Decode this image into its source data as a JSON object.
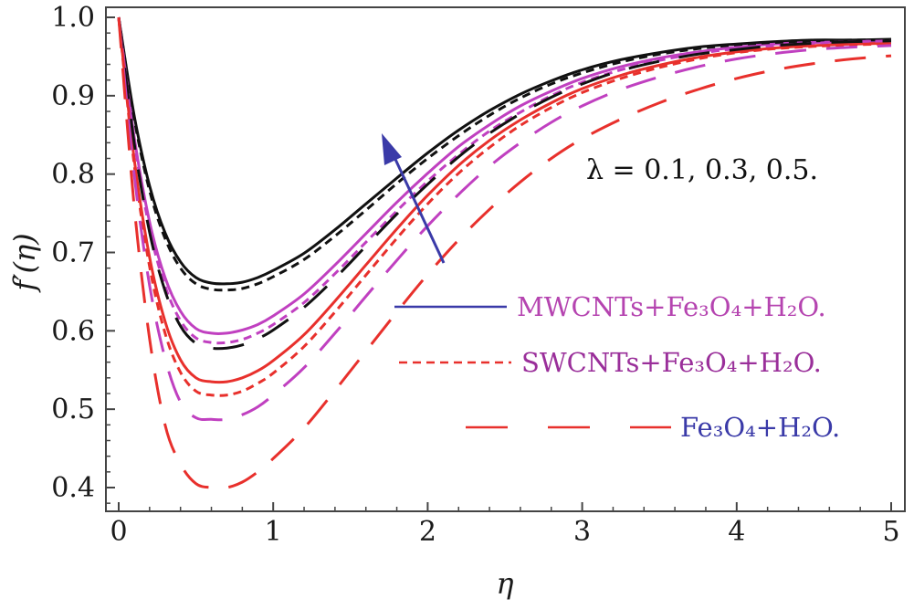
{
  "chart_data": {
    "type": "line",
    "title": "",
    "xlabel": "η",
    "ylabel": "f′(η)",
    "xlim": [
      0,
      5
    ],
    "ylim": [
      0.37,
      1.02
    ],
    "x_ticks": [
      0,
      1,
      2,
      3,
      4,
      5
    ],
    "x_tick_labels": [
      "0",
      "1",
      "2",
      "3",
      "4",
      "5"
    ],
    "y_ticks": [
      0.4,
      0.5,
      0.6,
      0.7,
      0.8,
      0.9,
      1.0
    ],
    "y_tick_labels": [
      "0.4",
      "0.5",
      "0.6",
      "0.7",
      "0.8",
      "0.9",
      "1.0"
    ],
    "grid": false,
    "annotation": "λ = 0.1, 0.3, 0.5.",
    "arrow_color": "#3a3aa8",
    "legend": [
      {
        "label": "MWCNTs+Fe₃O₄+H₂O.",
        "style": "solid",
        "line_color": "#3a3aa8",
        "text_color": "#b544b0"
      },
      {
        "label": "SWCNTs+Fe₃O₄+H₂O.",
        "style": "short-dash",
        "line_color": "#e8302c",
        "text_color": "#9a2f9a"
      },
      {
        "label": "Fe₃O₄+H₂O.",
        "style": "long-dash",
        "line_color": "#e8302c",
        "text_color": "#3a3aa8"
      }
    ],
    "series": [
      {
        "fluid": "MWCNTs+Fe₃O₄+H₂O",
        "lambda": 0.5,
        "style": "solid",
        "color": "#111111",
        "min_y": 0.66,
        "min_x": 0.7,
        "x": [
          0,
          0.1,
          0.2,
          0.3,
          0.4,
          0.5,
          0.6,
          0.7,
          0.8,
          0.9,
          1.0,
          1.2,
          1.4,
          1.6,
          1.8,
          2.0,
          2.2,
          2.4,
          2.6,
          2.8,
          3.0,
          3.25,
          3.5,
          3.75,
          4.0,
          4.25,
          4.5,
          4.75,
          5.0
        ],
        "y": [
          1.0,
          0.875,
          0.785,
          0.725,
          0.688,
          0.668,
          0.661,
          0.66,
          0.662,
          0.668,
          0.677,
          0.699,
          0.729,
          0.762,
          0.795,
          0.827,
          0.856,
          0.881,
          0.902,
          0.919,
          0.933,
          0.946,
          0.955,
          0.962,
          0.966,
          0.969,
          0.971,
          0.971,
          0.972
        ]
      },
      {
        "fluid": "MWCNTs+Fe₃O₄+H₂O",
        "lambda": 0.3,
        "style": "solid",
        "color": "#c040c0",
        "min_y": 0.597,
        "min_x": 0.7,
        "x": [
          0,
          0.1,
          0.2,
          0.3,
          0.4,
          0.5,
          0.6,
          0.7,
          0.8,
          0.9,
          1.0,
          1.2,
          1.4,
          1.6,
          1.8,
          2.0,
          2.2,
          2.4,
          2.6,
          2.8,
          3.0,
          3.25,
          3.5,
          3.75,
          4.0,
          4.25,
          4.5,
          4.75,
          5.0
        ],
        "y": [
          1.0,
          0.848,
          0.739,
          0.668,
          0.625,
          0.603,
          0.597,
          0.597,
          0.601,
          0.608,
          0.619,
          0.647,
          0.684,
          0.724,
          0.764,
          0.801,
          0.835,
          0.863,
          0.887,
          0.906,
          0.922,
          0.937,
          0.948,
          0.956,
          0.962,
          0.966,
          0.968,
          0.969,
          0.97
        ]
      },
      {
        "fluid": "MWCNTs+Fe₃O₄+H₂O",
        "lambda": 0.1,
        "style": "solid",
        "color": "#e8302c",
        "min_y": 0.535,
        "min_x": 0.7,
        "x": [
          0,
          0.1,
          0.2,
          0.3,
          0.4,
          0.5,
          0.6,
          0.7,
          0.8,
          0.9,
          1.0,
          1.2,
          1.4,
          1.6,
          1.8,
          2.0,
          2.2,
          2.4,
          2.6,
          2.8,
          3.0,
          3.25,
          3.5,
          3.75,
          4.0,
          4.25,
          4.5,
          4.75,
          5.0
        ],
        "y": [
          1.0,
          0.82,
          0.694,
          0.612,
          0.563,
          0.54,
          0.535,
          0.535,
          0.54,
          0.549,
          0.562,
          0.595,
          0.638,
          0.684,
          0.73,
          0.773,
          0.811,
          0.843,
          0.869,
          0.891,
          0.909,
          0.926,
          0.939,
          0.949,
          0.956,
          0.961,
          0.964,
          0.966,
          0.967
        ]
      },
      {
        "fluid": "SWCNTs+Fe₃O₄+H₂O",
        "lambda": 0.5,
        "style": "short-dash",
        "color": "#111111",
        "min_y": 0.652,
        "min_x": 0.7,
        "x": [
          0,
          0.1,
          0.2,
          0.3,
          0.4,
          0.5,
          0.6,
          0.7,
          0.8,
          0.9,
          1.0,
          1.2,
          1.4,
          1.6,
          1.8,
          2.0,
          2.2,
          2.4,
          2.6,
          2.8,
          3.0,
          3.25,
          3.5,
          3.75,
          4.0,
          4.25,
          4.5,
          4.75,
          5.0
        ],
        "y": [
          1.0,
          0.871,
          0.779,
          0.718,
          0.68,
          0.66,
          0.653,
          0.652,
          0.654,
          0.66,
          0.669,
          0.691,
          0.721,
          0.754,
          0.788,
          0.82,
          0.849,
          0.875,
          0.897,
          0.915,
          0.929,
          0.943,
          0.953,
          0.96,
          0.965,
          0.968,
          0.97,
          0.971,
          0.971
        ]
      },
      {
        "fluid": "SWCNTs+Fe₃O₄+H₂O",
        "lambda": 0.3,
        "style": "short-dash",
        "color": "#c040c0",
        "min_y": 0.585,
        "min_x": 0.7,
        "x": [
          0,
          0.1,
          0.2,
          0.3,
          0.4,
          0.5,
          0.6,
          0.7,
          0.8,
          0.9,
          1.0,
          1.2,
          1.4,
          1.6,
          1.8,
          2.0,
          2.2,
          2.4,
          2.6,
          2.8,
          3.0,
          3.25,
          3.5,
          3.75,
          4.0,
          4.25,
          4.5,
          4.75,
          5.0
        ],
        "y": [
          1.0,
          0.843,
          0.73,
          0.657,
          0.613,
          0.591,
          0.585,
          0.585,
          0.589,
          0.597,
          0.608,
          0.636,
          0.673,
          0.713,
          0.753,
          0.791,
          0.825,
          0.855,
          0.879,
          0.9,
          0.917,
          0.933,
          0.945,
          0.954,
          0.96,
          0.964,
          0.967,
          0.969,
          0.97
        ]
      },
      {
        "fluid": "SWCNTs+Fe₃O₄+H₂O",
        "lambda": 0.1,
        "style": "short-dash",
        "color": "#e8302c",
        "min_y": 0.518,
        "min_x": 0.7,
        "x": [
          0,
          0.1,
          0.2,
          0.3,
          0.4,
          0.5,
          0.6,
          0.7,
          0.8,
          0.9,
          1.0,
          1.2,
          1.4,
          1.6,
          1.8,
          2.0,
          2.2,
          2.4,
          2.6,
          2.8,
          3.0,
          3.25,
          3.5,
          3.75,
          4.0,
          4.25,
          4.5,
          4.75,
          5.0
        ],
        "y": [
          1.0,
          0.813,
          0.682,
          0.597,
          0.547,
          0.523,
          0.518,
          0.518,
          0.523,
          0.533,
          0.546,
          0.58,
          0.624,
          0.671,
          0.718,
          0.762,
          0.801,
          0.834,
          0.862,
          0.885,
          0.904,
          0.922,
          0.936,
          0.947,
          0.955,
          0.96,
          0.963,
          0.965,
          0.966
        ]
      },
      {
        "fluid": "Fe₃O₄+H₂O",
        "lambda": 0.5,
        "style": "long-dash",
        "color": "#111111",
        "min_y": 0.578,
        "min_x": 0.7,
        "x": [
          0,
          0.1,
          0.2,
          0.3,
          0.4,
          0.5,
          0.6,
          0.7,
          0.8,
          0.9,
          1.0,
          1.2,
          1.4,
          1.6,
          1.8,
          2.0,
          2.2,
          2.4,
          2.6,
          2.8,
          3.0,
          3.25,
          3.5,
          3.75,
          4.0,
          4.25,
          4.5,
          4.75,
          5.0
        ],
        "y": [
          1.0,
          0.84,
          0.726,
          0.651,
          0.606,
          0.584,
          0.578,
          0.578,
          0.582,
          0.59,
          0.601,
          0.63,
          0.667,
          0.708,
          0.749,
          0.787,
          0.822,
          0.852,
          0.877,
          0.898,
          0.915,
          0.932,
          0.944,
          0.953,
          0.959,
          0.964,
          0.967,
          0.969,
          0.97
        ]
      },
      {
        "fluid": "Fe₃O₄+H₂O",
        "lambda": 0.3,
        "style": "long-dash",
        "color": "#c040c0",
        "min_y": 0.487,
        "min_x": 0.7,
        "x": [
          0,
          0.1,
          0.2,
          0.3,
          0.4,
          0.5,
          0.6,
          0.7,
          0.8,
          0.9,
          1.0,
          1.2,
          1.4,
          1.6,
          1.8,
          2.0,
          2.2,
          2.4,
          2.6,
          2.8,
          3.0,
          3.25,
          3.5,
          3.75,
          4.0,
          4.25,
          4.5,
          4.75,
          5.0
        ],
        "y": [
          1.0,
          0.8,
          0.658,
          0.565,
          0.509,
          0.489,
          0.487,
          0.487,
          0.493,
          0.503,
          0.518,
          0.553,
          0.597,
          0.644,
          0.69,
          0.734,
          0.774,
          0.81,
          0.84,
          0.866,
          0.887,
          0.908,
          0.924,
          0.937,
          0.947,
          0.954,
          0.959,
          0.962,
          0.964
        ]
      },
      {
        "fluid": "Fe₃O₄+H₂O",
        "lambda": 0.1,
        "style": "long-dash",
        "color": "#e8302c",
        "min_y": 0.4,
        "min_x": 0.7,
        "x": [
          0,
          0.1,
          0.2,
          0.3,
          0.4,
          0.5,
          0.6,
          0.7,
          0.8,
          0.9,
          1.0,
          1.2,
          1.4,
          1.6,
          1.8,
          2.0,
          2.2,
          2.4,
          2.6,
          2.8,
          3.0,
          3.25,
          3.5,
          3.75,
          4.0,
          4.25,
          4.5,
          4.75,
          5.0
        ],
        "y": [
          1.0,
          0.76,
          0.59,
          0.48,
          0.43,
          0.405,
          0.4,
          0.4,
          0.407,
          0.42,
          0.437,
          0.476,
          0.524,
          0.574,
          0.624,
          0.672,
          0.716,
          0.755,
          0.79,
          0.82,
          0.845,
          0.87,
          0.891,
          0.908,
          0.922,
          0.933,
          0.941,
          0.947,
          0.951
        ]
      }
    ]
  }
}
